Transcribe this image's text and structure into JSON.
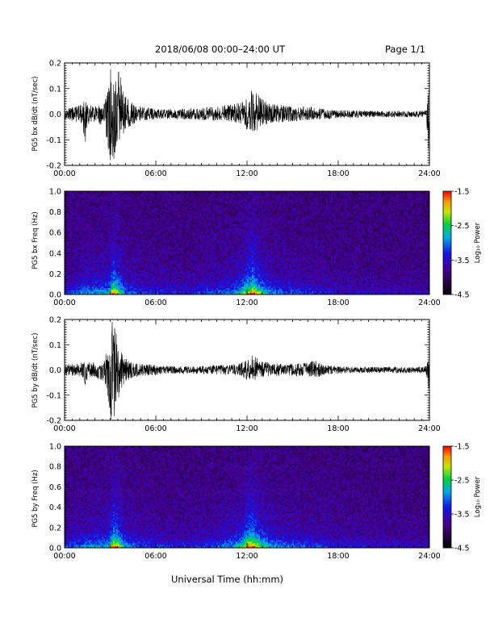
{
  "header": {
    "title": "2018/06/08  00:00–24:00 UT",
    "page": "Page 1/1"
  },
  "footer": {
    "xlabel": "Universal Time (hh:mm)"
  },
  "colors": {
    "trace": "#000000",
    "axis": "#000000"
  },
  "chart_data": [
    {
      "type": "line",
      "name": "panel-bx-dbdt",
      "ylabel": "PG5 bx dB/dt (nT/sec)",
      "xlim": [
        0,
        24
      ],
      "ylim": [
        -0.2,
        0.2
      ],
      "xtick_labels": [
        "00:00",
        "06:00",
        "12:00",
        "18:00",
        "24:00"
      ],
      "ytick_labels": [
        "0.2",
        "0.1",
        "0.0",
        "-0.1",
        "-0.2"
      ],
      "envelope": {
        "x_hours": [
          0,
          0.6,
          1.2,
          1.35,
          1.5,
          2.0,
          2.6,
          2.9,
          3.05,
          3.2,
          3.35,
          3.5,
          3.7,
          4.0,
          4.5,
          5.0,
          6.0,
          7.0,
          8.0,
          9.0,
          10.0,
          11.0,
          11.5,
          12.0,
          12.3,
          12.6,
          13.0,
          13.5,
          14.0,
          15.0,
          16.0,
          16.5,
          17.0,
          18.0,
          19.0,
          20.0,
          21.0,
          22.0,
          23.0,
          23.8,
          23.95,
          24.0
        ],
        "amp_up": [
          0.02,
          0.03,
          0.04,
          0.06,
          0.04,
          0.03,
          0.04,
          0.12,
          0.2,
          0.2,
          0.2,
          0.18,
          0.14,
          0.07,
          0.04,
          0.03,
          0.02,
          0.02,
          0.02,
          0.025,
          0.03,
          0.04,
          0.05,
          0.07,
          0.1,
          0.09,
          0.06,
          0.045,
          0.04,
          0.03,
          0.03,
          0.03,
          0.02,
          0.015,
          0.015,
          0.015,
          0.012,
          0.012,
          0.012,
          0.015,
          0.12,
          0.02
        ],
        "amp_down": [
          0.02,
          0.03,
          0.04,
          0.14,
          0.04,
          0.03,
          0.05,
          0.15,
          0.2,
          0.2,
          0.18,
          0.15,
          0.1,
          0.06,
          0.04,
          0.03,
          0.02,
          0.02,
          0.02,
          0.025,
          0.03,
          0.03,
          0.04,
          0.06,
          0.07,
          0.07,
          0.05,
          0.04,
          0.035,
          0.03,
          0.025,
          0.025,
          0.02,
          0.015,
          0.015,
          0.012,
          0.012,
          0.012,
          0.012,
          0.015,
          0.17,
          0.02
        ]
      }
    },
    {
      "type": "heatmap",
      "name": "panel-bx-spectrogram",
      "ylabel": "PG5 bx Freq (Hz)",
      "colorbar_label": "Log₁₀ Power",
      "xlim": [
        0,
        24
      ],
      "ylim": [
        0,
        1.0
      ],
      "clim": [
        -4.5,
        -1.5
      ],
      "xtick_labels": [
        "00:00",
        "06:00",
        "12:00",
        "18:00",
        "24:00"
      ],
      "ytick_labels": [
        "1.0",
        "0.8",
        "0.6",
        "0.4",
        "0.2",
        "0.0"
      ],
      "colorbar_ticks": [
        "-1.5",
        "-2.5",
        "-3.5",
        "-4.5"
      ],
      "activity": {
        "x_hours": [
          0,
          1.35,
          2.9,
          3.2,
          3.6,
          4.0,
          5.0,
          8.0,
          10.0,
          11.0,
          11.6,
          12.0,
          12.4,
          12.8,
          13.3,
          14.0,
          16.0,
          18.0,
          24.0
        ],
        "level": [
          0.25,
          0.45,
          0.55,
          0.95,
          0.8,
          0.45,
          0.3,
          0.25,
          0.35,
          0.45,
          0.6,
          0.85,
          0.95,
          0.8,
          0.55,
          0.4,
          0.3,
          0.2,
          0.15
        ]
      }
    },
    {
      "type": "line",
      "name": "panel-by-dbdt",
      "ylabel": "PG5 by dB/dt (nT/sec)",
      "xlim": [
        0,
        24
      ],
      "ylim": [
        -0.2,
        0.2
      ],
      "xtick_labels": [
        "00:00",
        "06:00",
        "12:00",
        "18:00",
        "24:00"
      ],
      "ytick_labels": [
        "0.2",
        "0.1",
        "0.0",
        "-0.1",
        "-0.2"
      ],
      "envelope": {
        "x_hours": [
          0,
          0.6,
          1.2,
          1.35,
          1.5,
          2.0,
          2.6,
          2.9,
          3.05,
          3.2,
          3.35,
          3.5,
          3.7,
          4.0,
          4.5,
          5.0,
          6.0,
          7.0,
          8.0,
          9.0,
          10.0,
          11.0,
          11.5,
          12.0,
          12.3,
          12.6,
          13.0,
          13.5,
          14.0,
          15.0,
          16.0,
          16.5,
          17.0,
          18.0,
          19.0,
          20.0,
          21.0,
          22.0,
          23.0,
          23.8,
          23.95,
          24.0
        ],
        "amp_up": [
          0.02,
          0.025,
          0.03,
          0.05,
          0.03,
          0.03,
          0.04,
          0.1,
          0.2,
          0.2,
          0.18,
          0.15,
          0.1,
          0.05,
          0.03,
          0.025,
          0.02,
          0.015,
          0.015,
          0.015,
          0.02,
          0.02,
          0.03,
          0.04,
          0.06,
          0.05,
          0.035,
          0.03,
          0.025,
          0.025,
          0.03,
          0.04,
          0.02,
          0.015,
          0.012,
          0.012,
          0.012,
          0.012,
          0.012,
          0.015,
          0.05,
          0.015
        ],
        "amp_down": [
          0.02,
          0.025,
          0.03,
          0.1,
          0.03,
          0.03,
          0.05,
          0.13,
          0.2,
          0.2,
          0.2,
          0.15,
          0.09,
          0.05,
          0.03,
          0.025,
          0.02,
          0.015,
          0.015,
          0.015,
          0.02,
          0.02,
          0.025,
          0.04,
          0.04,
          0.04,
          0.03,
          0.025,
          0.025,
          0.025,
          0.025,
          0.035,
          0.02,
          0.015,
          0.012,
          0.012,
          0.012,
          0.012,
          0.012,
          0.015,
          0.08,
          0.015
        ]
      }
    },
    {
      "type": "heatmap",
      "name": "panel-by-spectrogram",
      "ylabel": "PG5 by Freq (Hz)",
      "colorbar_label": "Log₁₀ Power",
      "xlim": [
        0,
        24
      ],
      "ylim": [
        0,
        1.0
      ],
      "clim": [
        -4.5,
        -1.5
      ],
      "xtick_labels": [
        "00:00",
        "06:00",
        "12:00",
        "18:00",
        "24:00"
      ],
      "ytick_labels": [
        "1.0",
        "0.8",
        "0.6",
        "0.4",
        "0.2",
        "0.0"
      ],
      "colorbar_ticks": [
        "-1.5",
        "-2.5",
        "-3.5",
        "-4.5"
      ],
      "activity": {
        "x_hours": [
          0,
          1.35,
          2.9,
          3.2,
          3.6,
          4.0,
          5.0,
          8.0,
          10.0,
          11.0,
          11.6,
          12.0,
          12.4,
          12.8,
          13.3,
          14.0,
          16.0,
          18.0,
          24.0
        ],
        "level": [
          0.3,
          0.45,
          0.55,
          0.95,
          0.85,
          0.5,
          0.35,
          0.25,
          0.35,
          0.5,
          0.65,
          0.9,
          0.95,
          0.8,
          0.6,
          0.45,
          0.35,
          0.25,
          0.15
        ]
      }
    }
  ]
}
